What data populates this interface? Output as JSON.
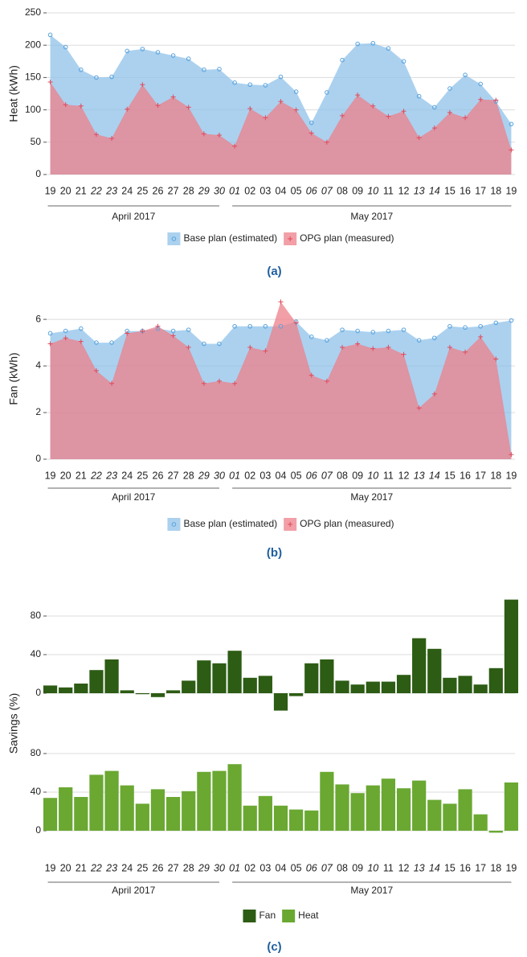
{
  "chart_data": [
    {
      "type": "area",
      "ylabel": "Heat (kWh)",
      "caption": "(a)",
      "categories": [
        "19",
        "20",
        "21",
        "22",
        "23",
        "24",
        "25",
        "26",
        "27",
        "28",
        "29",
        "30",
        "01",
        "02",
        "03",
        "04",
        "05",
        "06",
        "07",
        "08",
        "09",
        "10",
        "11",
        "12",
        "13",
        "14",
        "15",
        "16",
        "17",
        "18",
        "19"
      ],
      "category_label_colors": [
        "#222222",
        "#222222",
        "#222222",
        "#e3211c",
        "#e3211c",
        "#222222",
        "#222222",
        "#222222",
        "#222222",
        "#222222",
        "#e3211c",
        "#e3211c",
        "#e3211c",
        "#222222",
        "#222222",
        "#222222",
        "#222222",
        "#e3211c",
        "#e3211c",
        "#222222",
        "#222222",
        "#e3211c",
        "#222222",
        "#222222",
        "#e3211c",
        "#e3211c",
        "#222222",
        "#222222",
        "#222222",
        "#222222",
        "#222222"
      ],
      "groups": [
        {
          "label": "April 2017",
          "count": 12
        },
        {
          "label": "May 2017",
          "count": 19
        }
      ],
      "ylim": [
        0,
        250
      ],
      "yticks": [
        0,
        50,
        100,
        150,
        200,
        250
      ],
      "grid": true,
      "series": [
        {
          "name": "Base plan (estimated)",
          "color": "#8fc1ea",
          "marker": "circle",
          "values": [
            216,
            197,
            162,
            150,
            151,
            191,
            194,
            189,
            184,
            179,
            162,
            163,
            142,
            139,
            138,
            151,
            128,
            80,
            127,
            177,
            202,
            203,
            195,
            175,
            121,
            104,
            133,
            154,
            140,
            113,
            78
          ]
        },
        {
          "name": "OPG plan (measured)",
          "color": "#ee7f8a",
          "marker": "plus",
          "values": [
            143,
            108,
            106,
            62,
            56,
            101,
            139,
            107,
            120,
            104,
            63,
            61,
            44,
            102,
            88,
            113,
            100,
            64,
            50,
            91,
            123,
            106,
            90,
            98,
            57,
            72,
            96,
            88,
            116,
            115,
            38
          ]
        }
      ]
    },
    {
      "type": "area",
      "ylabel": "Fan (kWh)",
      "caption": "(b)",
      "categories": [
        "19",
        "20",
        "21",
        "22",
        "23",
        "24",
        "25",
        "26",
        "27",
        "28",
        "29",
        "30",
        "01",
        "02",
        "03",
        "04",
        "05",
        "06",
        "07",
        "08",
        "09",
        "10",
        "11",
        "12",
        "13",
        "14",
        "15",
        "16",
        "17",
        "18",
        "19"
      ],
      "category_label_colors": [
        "#222222",
        "#222222",
        "#222222",
        "#e3211c",
        "#e3211c",
        "#222222",
        "#222222",
        "#222222",
        "#222222",
        "#222222",
        "#e3211c",
        "#e3211c",
        "#e3211c",
        "#222222",
        "#222222",
        "#222222",
        "#222222",
        "#e3211c",
        "#e3211c",
        "#222222",
        "#222222",
        "#e3211c",
        "#222222",
        "#222222",
        "#e3211c",
        "#e3211c",
        "#222222",
        "#222222",
        "#222222",
        "#222222",
        "#222222"
      ],
      "groups": [
        {
          "label": "April 2017",
          "count": 12
        },
        {
          "label": "May 2017",
          "count": 19
        }
      ],
      "ylim": [
        0,
        6.9
      ],
      "yticks": [
        0,
        2,
        4,
        6
      ],
      "grid": true,
      "series": [
        {
          "name": "Base plan (estimated)",
          "color": "#8fc1ea",
          "marker": "circle",
          "values": [
            5.4,
            5.5,
            5.6,
            5.0,
            5.0,
            5.5,
            5.5,
            5.6,
            5.5,
            5.55,
            4.95,
            4.95,
            5.7,
            5.7,
            5.7,
            5.7,
            5.9,
            5.25,
            5.1,
            5.55,
            5.5,
            5.45,
            5.5,
            5.55,
            5.1,
            5.2,
            5.7,
            5.65,
            5.7,
            5.85,
            5.95
          ]
        },
        {
          "name": "OPG plan (measured)",
          "color": "#ee7f8a",
          "marker": "plus",
          "values": [
            4.95,
            5.2,
            5.05,
            3.8,
            3.25,
            5.4,
            5.5,
            5.7,
            5.3,
            4.8,
            3.25,
            3.35,
            3.25,
            4.8,
            4.65,
            6.75,
            5.85,
            3.6,
            3.35,
            4.8,
            4.95,
            4.75,
            4.8,
            4.5,
            2.2,
            2.8,
            4.8,
            4.6,
            5.25,
            4.3,
            0.2
          ]
        }
      ]
    },
    {
      "type": "bar",
      "ylabel": "Savings (%)",
      "caption": "(c)",
      "facet": true,
      "categories": [
        "19",
        "20",
        "21",
        "22",
        "23",
        "24",
        "25",
        "26",
        "27",
        "28",
        "29",
        "30",
        "01",
        "02",
        "03",
        "04",
        "05",
        "06",
        "07",
        "08",
        "09",
        "10",
        "11",
        "12",
        "13",
        "14",
        "15",
        "16",
        "17",
        "18",
        "19"
      ],
      "category_label_colors": [
        "#222222",
        "#222222",
        "#222222",
        "#e3211c",
        "#e3211c",
        "#222222",
        "#222222",
        "#222222",
        "#222222",
        "#222222",
        "#e3211c",
        "#e3211c",
        "#e3211c",
        "#222222",
        "#222222",
        "#222222",
        "#222222",
        "#e3211c",
        "#e3211c",
        "#222222",
        "#222222",
        "#e3211c",
        "#222222",
        "#222222",
        "#e3211c",
        "#e3211c",
        "#222222",
        "#222222",
        "#222222",
        "#222222",
        "#222222"
      ],
      "groups": [
        {
          "label": "April 2017",
          "count": 12
        },
        {
          "label": "May 2017",
          "count": 19
        }
      ],
      "ylim": [
        -20,
        100
      ],
      "yticks": [
        0,
        40,
        80
      ],
      "grid": true,
      "series": [
        {
          "name": "Fan",
          "color": "#2d5c14",
          "values": [
            8,
            6,
            10,
            24,
            35,
            3,
            -1,
            -4,
            3,
            13,
            34,
            31,
            44,
            16,
            18,
            -18,
            -3,
            31,
            35,
            13,
            9,
            12,
            12,
            19,
            57,
            46,
            16,
            18,
            9,
            26,
            97
          ]
        },
        {
          "name": "Heat",
          "color": "#6aa832",
          "values": [
            34,
            45,
            35,
            58,
            62,
            47,
            28,
            43,
            35,
            41,
            61,
            62,
            69,
            26,
            36,
            26,
            22,
            21,
            61,
            48,
            39,
            47,
            54,
            44,
            52,
            32,
            28,
            43,
            17,
            -2,
            50
          ]
        }
      ]
    }
  ]
}
